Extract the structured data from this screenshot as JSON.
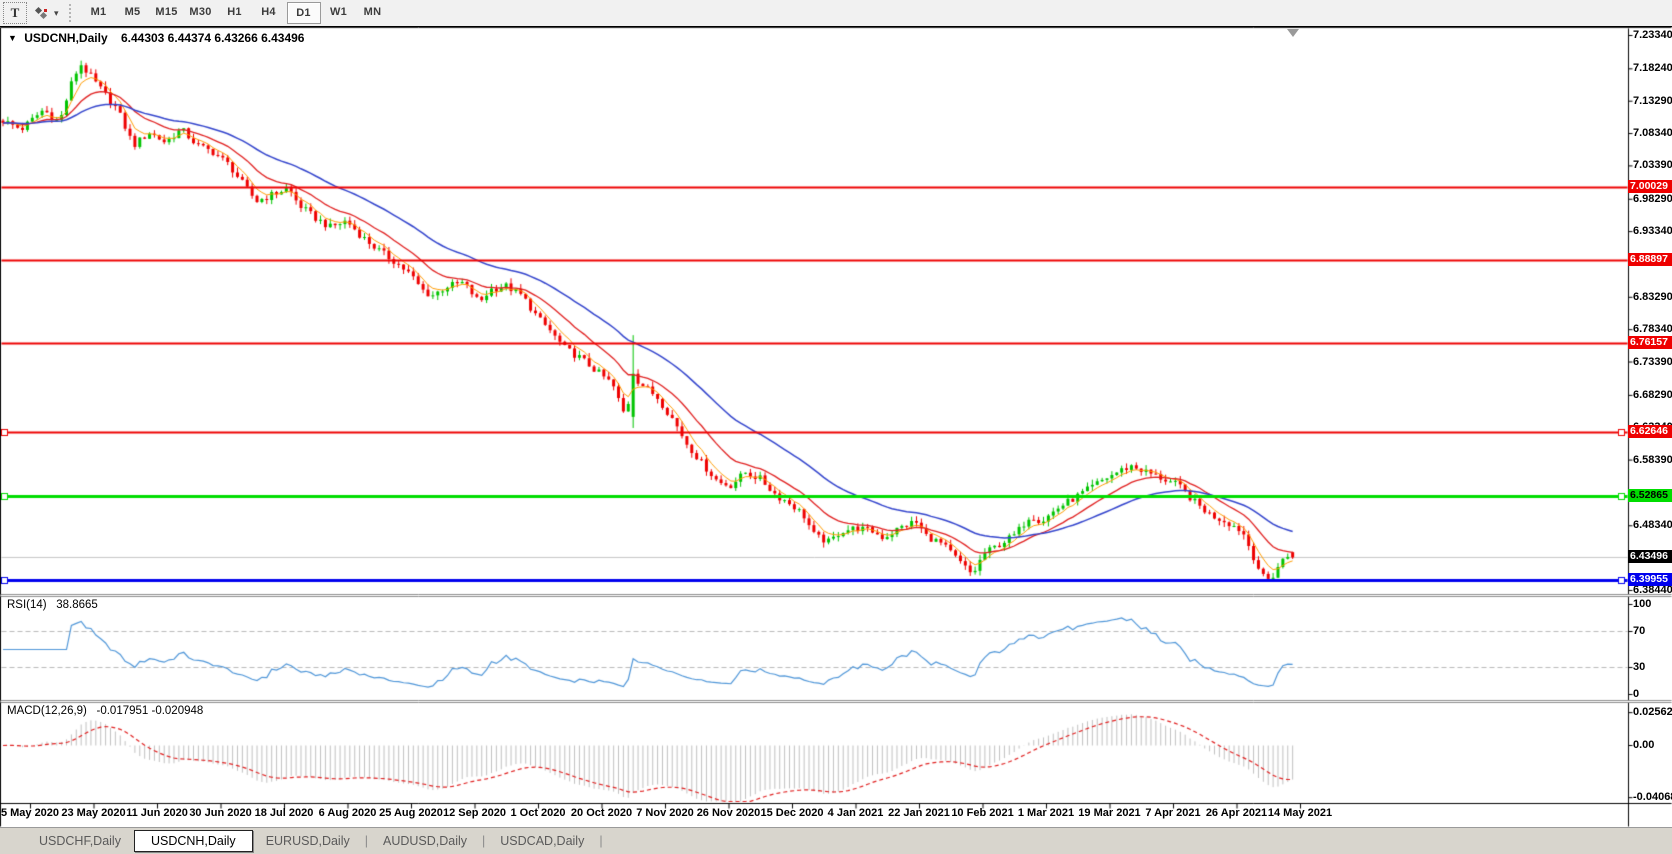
{
  "toolbar": {
    "text_tool_label": "T",
    "timeframes": [
      "M1",
      "M5",
      "M15",
      "M30",
      "H1",
      "H4",
      "D1",
      "W1",
      "MN"
    ],
    "active_timeframe": "D1"
  },
  "chart_window": {
    "symbol_title": "USDCNH,Daily",
    "ohlc": "6.44303 6.44374 6.43266 6.43496"
  },
  "price_axis": {
    "labels": [
      {
        "text": "7.23340",
        "price": 7.2334
      },
      {
        "text": "7.18240",
        "price": 7.1824
      },
      {
        "text": "7.13290",
        "price": 7.1329
      },
      {
        "text": "7.08340",
        "price": 7.0834
      },
      {
        "text": "7.03390",
        "price": 7.0339
      },
      {
        "text": "6.98290",
        "price": 6.9829
      },
      {
        "text": "6.93340",
        "price": 6.9334
      },
      {
        "text": "6.88390",
        "price": 6.8839
      },
      {
        "text": "6.83290",
        "price": 6.8329
      },
      {
        "text": "6.78340",
        "price": 6.7834
      },
      {
        "text": "6.73390",
        "price": 6.7339
      },
      {
        "text": "6.68290",
        "price": 6.6829
      },
      {
        "text": "6.63340",
        "price": 6.6334
      },
      {
        "text": "6.58390",
        "price": 6.5839
      },
      {
        "text": "6.48340",
        "price": 6.4834
      },
      {
        "text": "6.38440",
        "price": 6.3844
      }
    ],
    "badges": [
      {
        "text": "7.00029",
        "price": 7.00029,
        "bg": "#ee0000",
        "fg": "#ffffff"
      },
      {
        "text": "6.88897",
        "price": 6.88897,
        "bg": "#ee0000",
        "fg": "#ffffff"
      },
      {
        "text": "6.76157",
        "price": 6.76157,
        "bg": "#ee0000",
        "fg": "#ffffff"
      },
      {
        "text": "6.62646",
        "price": 6.62646,
        "bg": "#ee0000",
        "fg": "#ffffff"
      },
      {
        "text": "6.52865",
        "price": 6.52865,
        "bg": "#00dd00",
        "fg": "#000000"
      },
      {
        "text": "6.43496",
        "price": 6.43496,
        "bg": "#000000",
        "fg": "#ffffff"
      },
      {
        "text": "6.39955",
        "price": 6.39955,
        "bg": "#0000ee",
        "fg": "#ffffff"
      }
    ]
  },
  "hlines": [
    {
      "price": 7.00029,
      "color": "#ee0000",
      "width": 2,
      "selected": false
    },
    {
      "price": 6.88897,
      "color": "#ee0000",
      "width": 2,
      "selected": false
    },
    {
      "price": 6.76157,
      "color": "#ee0000",
      "width": 2,
      "selected": false
    },
    {
      "price": 6.62646,
      "color": "#ee0000",
      "width": 2,
      "selected": true
    },
    {
      "price": 6.52865,
      "color": "#00dd00",
      "width": 3,
      "selected": true
    },
    {
      "price": 6.39955,
      "color": "#0000ee",
      "width": 3,
      "selected": true
    }
  ],
  "current_price": {
    "value": 6.43496,
    "line_color": "#c4c4c4"
  },
  "chart_data": {
    "type": "candlestick",
    "symbol": "USDCNH",
    "timeframe": "Daily",
    "ylim": [
      6.3844,
      7.2334
    ],
    "up_color": "#00c400",
    "down_color": "#ee0000",
    "bar_spacing": 4.885,
    "bar_count": 265,
    "label_start_x": 30,
    "label_spacing": 63.5,
    "last_candle": {
      "open": 6.44303,
      "high": 6.44374,
      "low": 6.43266,
      "close": 6.43496
    },
    "spike": {
      "x": 631,
      "open": 6.65,
      "high": 6.775,
      "low": 6.633,
      "close": 6.716
    },
    "close_anchors": [
      [
        0,
        7.105
      ],
      [
        21,
        7.09
      ],
      [
        43,
        7.12
      ],
      [
        59,
        7.1
      ],
      [
        72,
        7.165
      ],
      [
        80,
        7.19
      ],
      [
        101,
        7.15
      ],
      [
        117,
        7.12
      ],
      [
        133,
        7.065
      ],
      [
        149,
        7.085
      ],
      [
        165,
        7.07
      ],
      [
        181,
        7.09
      ],
      [
        197,
        7.065
      ],
      [
        213,
        7.055
      ],
      [
        229,
        7.035
      ],
      [
        243,
        7.005
      ],
      [
        256,
        6.98
      ],
      [
        272,
        6.99
      ],
      [
        288,
        7.0
      ],
      [
        298,
        6.975
      ],
      [
        314,
        6.955
      ],
      [
        330,
        6.94
      ],
      [
        346,
        6.95
      ],
      [
        362,
        6.925
      ],
      [
        378,
        6.905
      ],
      [
        394,
        6.888
      ],
      [
        410,
        6.868
      ],
      [
        421,
        6.845
      ],
      [
        431,
        6.835
      ],
      [
        447,
        6.85
      ],
      [
        463,
        6.855
      ],
      [
        479,
        6.825
      ],
      [
        490,
        6.845
      ],
      [
        506,
        6.85
      ],
      [
        522,
        6.835
      ],
      [
        538,
        6.8
      ],
      [
        548,
        6.785
      ],
      [
        564,
        6.755
      ],
      [
        580,
        6.74
      ],
      [
        596,
        6.72
      ],
      [
        612,
        6.7
      ],
      [
        622,
        6.66
      ],
      [
        626,
        6.648
      ],
      [
        631,
        6.715
      ],
      [
        641,
        6.7
      ],
      [
        657,
        6.68
      ],
      [
        673,
        6.645
      ],
      [
        686,
        6.61
      ],
      [
        702,
        6.578
      ],
      [
        718,
        6.55
      ],
      [
        730,
        6.545
      ],
      [
        745,
        6.565
      ],
      [
        760,
        6.555
      ],
      [
        776,
        6.53
      ],
      [
        792,
        6.515
      ],
      [
        803,
        6.5
      ],
      [
        814,
        6.468
      ],
      [
        829,
        6.458
      ],
      [
        840,
        6.475
      ],
      [
        856,
        6.48
      ],
      [
        872,
        6.475
      ],
      [
        883,
        6.465
      ],
      [
        899,
        6.48
      ],
      [
        915,
        6.49
      ],
      [
        926,
        6.468
      ],
      [
        942,
        6.455
      ],
      [
        958,
        6.43
      ],
      [
        972,
        6.408
      ],
      [
        983,
        6.44
      ],
      [
        999,
        6.455
      ],
      [
        1015,
        6.47
      ],
      [
        1030,
        6.5
      ],
      [
        1041,
        6.49
      ],
      [
        1057,
        6.51
      ],
      [
        1073,
        6.525
      ],
      [
        1089,
        6.54
      ],
      [
        1104,
        6.555
      ],
      [
        1120,
        6.568
      ],
      [
        1131,
        6.575
      ],
      [
        1147,
        6.565
      ],
      [
        1163,
        6.555
      ],
      [
        1178,
        6.545
      ],
      [
        1194,
        6.52
      ],
      [
        1210,
        6.5
      ],
      [
        1226,
        6.49
      ],
      [
        1242,
        6.475
      ],
      [
        1252,
        6.44
      ],
      [
        1262,
        6.405
      ],
      [
        1270,
        6.4
      ],
      [
        1280,
        6.428
      ],
      [
        1290,
        6.44
      ],
      [
        1297,
        6.435
      ]
    ],
    "moving_averages": [
      {
        "name": "fast-ma",
        "color": "#ff9c00",
        "period": 5
      },
      {
        "name": "medium-ma",
        "color": "#e02020",
        "period": 14
      },
      {
        "name": "slow-ma",
        "color": "#3344cc",
        "period": 34
      }
    ]
  },
  "rsi_pane": {
    "label": "RSI(14)",
    "value": "38.8665",
    "period": 14,
    "line_color": "#4f96d8",
    "level_lines": [
      70,
      30
    ],
    "axis_labels": [
      {
        "text": "100",
        "value": 100
      },
      {
        "text": "70",
        "value": 70
      },
      {
        "text": "30",
        "value": 30
      },
      {
        "text": "0",
        "value": 0
      }
    ]
  },
  "macd_pane": {
    "label": "MACD(12,26,9)",
    "values_text": "-0.017951 -0.020948",
    "fast": 12,
    "slow": 26,
    "signal": 9,
    "histogram_color": "#c0c0c0",
    "signal_color": "#e02020",
    "axis_labels": [
      {
        "text": "0.025623",
        "value": 0.025623
      },
      {
        "text": "0.00",
        "value": 0
      },
      {
        "text": "-0.040687",
        "value": -0.040687
      }
    ]
  },
  "date_axis": {
    "labels": [
      "5 May 2020",
      "23 May 2020",
      "11 Jun 2020",
      "30 Jun 2020",
      "18 Jul 2020",
      "6 Aug 2020",
      "25 Aug 2020",
      "12 Sep 2020",
      "1 Oct 2020",
      "20 Oct 2020",
      "7 Nov 2020",
      "26 Nov 2020",
      "15 Dec 2020",
      "4 Jan 2021",
      "22 Jan 2021",
      "10 Feb 2021",
      "1 Mar 2021",
      "19 Mar 2021",
      "7 Apr 2021",
      "26 Apr 2021",
      "14 May 2021"
    ]
  },
  "tabs": {
    "items": [
      "USDCHF,Daily",
      "USDCNH,Daily",
      "EURUSD,Daily",
      "AUDUSD,Daily",
      "USDCAD,Daily"
    ],
    "active": "USDCNH,Daily"
  }
}
